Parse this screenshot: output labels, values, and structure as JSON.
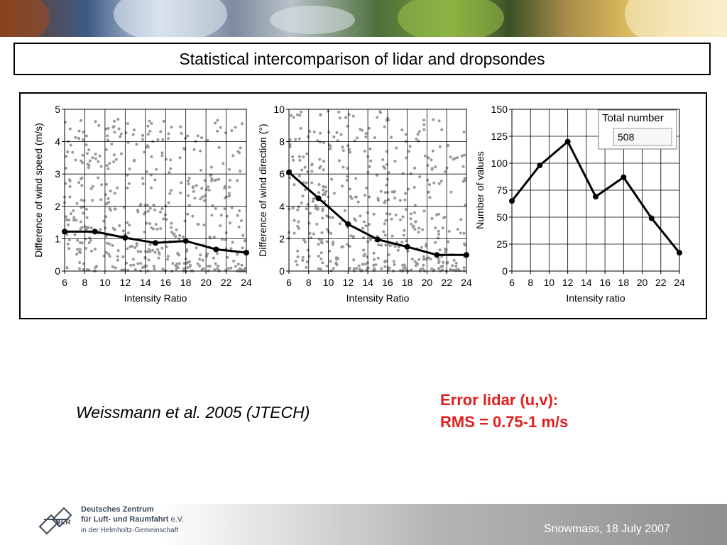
{
  "title": "Statistical intercomparison of lidar and dropsondes",
  "citation": "Weissmann et al. 2005 (JTECH)",
  "error": {
    "line1": "Error lidar (u,v):",
    "line2": "RMS = 0.75-1 m/s"
  },
  "footer": {
    "org_line1": "Deutsches Zentrum",
    "org_line2": "für Luft- und Raumfahrt",
    "org_ev": " e.V.",
    "org_line3": "in der Helmholtz-Gemeinschaft",
    "logo_text": "DLR",
    "date": "Snowmass, 18 July 2007"
  },
  "colors": {
    "error_text": "#e11f1f",
    "scatter": "#999999",
    "line": "#000000",
    "grid": "#000000"
  },
  "chart_data": [
    {
      "type": "scatter",
      "ylabel": "Difference of wind speed (m/s)",
      "xlabel": "Intensity Ratio",
      "xlim": [
        6,
        24
      ],
      "ylim": [
        0,
        5
      ],
      "xticks": [
        6,
        8,
        10,
        12,
        14,
        16,
        18,
        20,
        22,
        24
      ],
      "yticks": [
        0,
        1,
        2,
        3,
        4,
        5
      ],
      "grid": true,
      "mean_line": {
        "x": [
          6,
          9,
          12,
          15,
          18,
          21,
          24
        ],
        "y": [
          1.22,
          1.22,
          1.03,
          0.87,
          0.93,
          0.67,
          0.57
        ]
      },
      "scatter_seed": 7,
      "scatter_n": 470,
      "scatter_max": 4.7,
      "scatter_shape": 0.9
    },
    {
      "type": "scatter",
      "ylabel": "Difference of wind direction (°)",
      "xlabel": "Intensity Ratio",
      "xlim": [
        6,
        24
      ],
      "ylim": [
        0,
        10
      ],
      "xticks": [
        6,
        8,
        10,
        12,
        14,
        16,
        18,
        20,
        22,
        24
      ],
      "yticks": [
        0,
        2,
        4,
        6,
        8,
        10
      ],
      "grid": true,
      "mean_line": {
        "x": [
          6,
          9,
          12,
          15,
          18,
          21,
          24
        ],
        "y": [
          6.1,
          4.5,
          2.9,
          1.95,
          1.5,
          1.0,
          1.0
        ]
      },
      "scatter_seed": 19,
      "scatter_n": 470,
      "scatter_max": 9.9,
      "scatter_shape": 1.2
    },
    {
      "type": "line",
      "ylabel": "Number of values",
      "xlabel": "Intensity ratio",
      "xlim": [
        6,
        24
      ],
      "ylim": [
        0,
        150
      ],
      "xticks": [
        6,
        8,
        10,
        12,
        14,
        16,
        18,
        20,
        22,
        24
      ],
      "yticks": [
        0,
        25,
        50,
        75,
        100,
        125,
        150
      ],
      "grid": true,
      "x": [
        6,
        9,
        12,
        15,
        18,
        21,
        24
      ],
      "y": [
        65,
        98,
        120,
        69,
        87,
        49,
        17
      ],
      "total_label": "Total number",
      "total_value": "508"
    }
  ]
}
